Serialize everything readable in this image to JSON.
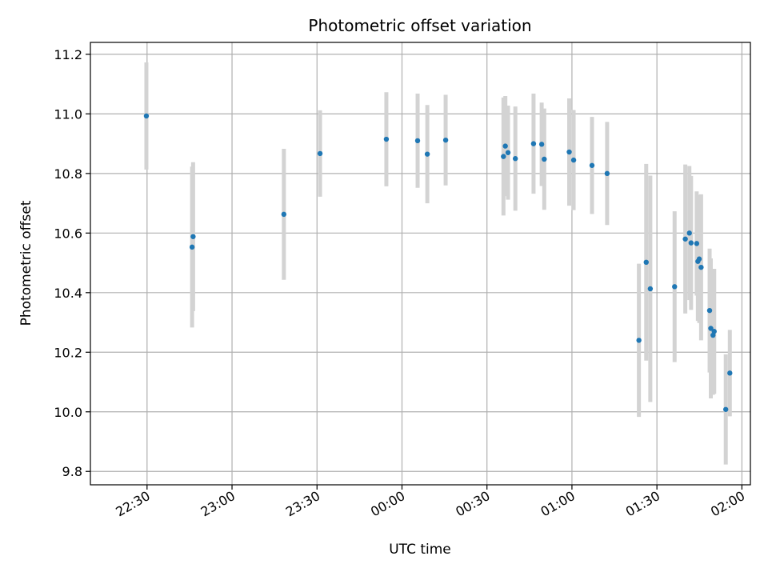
{
  "chart_data": {
    "type": "scatter",
    "title": "Photometric offset variation",
    "xlabel": "UTC time",
    "ylabel": "Photometric offset",
    "x_unit": "hours (UTC, continuing past midnight)",
    "xlim": [
      22.1667,
      26.05
    ],
    "ylim": [
      9.755,
      11.24
    ],
    "x_ticks": [
      22.5,
      23.0,
      23.5,
      24.0,
      24.5,
      25.0,
      25.5,
      26.0
    ],
    "x_tick_labels": [
      "22:30",
      "23:00",
      "23:30",
      "00:00",
      "00:30",
      "01:00",
      "01:30",
      "02:00"
    ],
    "y_ticks": [
      9.8,
      10.0,
      10.2,
      10.4,
      10.6,
      10.8,
      11.0,
      11.2
    ],
    "y_tick_labels": [
      "9.8",
      "10.0",
      "10.2",
      "10.4",
      "10.6",
      "10.8",
      "11.0",
      "11.2"
    ],
    "grid": true,
    "colors": {
      "point": "#1f77b4",
      "errorbar": "#d3d3d3",
      "grid": "#b0b0b0",
      "axes": "#000000"
    },
    "points": [
      {
        "x": 22.496,
        "y": 10.993,
        "yerr": 0.18
      },
      {
        "x": 22.765,
        "y": 10.553,
        "yerr": 0.27
      },
      {
        "x": 22.771,
        "y": 10.588,
        "yerr": 0.25
      },
      {
        "x": 23.305,
        "y": 10.663,
        "yerr": 0.22
      },
      {
        "x": 23.518,
        "y": 10.867,
        "yerr": 0.145
      },
      {
        "x": 23.908,
        "y": 10.915,
        "yerr": 0.158
      },
      {
        "x": 24.092,
        "y": 10.91,
        "yerr": 0.158
      },
      {
        "x": 24.149,
        "y": 10.865,
        "yerr": 0.165
      },
      {
        "x": 24.257,
        "y": 10.912,
        "yerr": 0.152
      },
      {
        "x": 24.597,
        "y": 10.857,
        "yerr": 0.198
      },
      {
        "x": 24.608,
        "y": 10.892,
        "yerr": 0.168
      },
      {
        "x": 24.624,
        "y": 10.87,
        "yerr": 0.158
      },
      {
        "x": 24.667,
        "y": 10.85,
        "yerr": 0.175
      },
      {
        "x": 24.774,
        "y": 10.9,
        "yerr": 0.168
      },
      {
        "x": 24.822,
        "y": 10.898,
        "yerr": 0.14
      },
      {
        "x": 24.837,
        "y": 10.848,
        "yerr": 0.17
      },
      {
        "x": 24.984,
        "y": 10.872,
        "yerr": 0.18
      },
      {
        "x": 25.01,
        "y": 10.845,
        "yerr": 0.168
      },
      {
        "x": 25.118,
        "y": 10.827,
        "yerr": 0.163
      },
      {
        "x": 25.207,
        "y": 10.8,
        "yerr": 0.173
      },
      {
        "x": 25.394,
        "y": 10.24,
        "yerr": 0.257
      },
      {
        "x": 25.437,
        "y": 10.502,
        "yerr": 0.33
      },
      {
        "x": 25.461,
        "y": 10.413,
        "yerr": 0.38
      },
      {
        "x": 25.604,
        "y": 10.42,
        "yerr": 0.253
      },
      {
        "x": 25.667,
        "y": 10.58,
        "yerr": 0.25
      },
      {
        "x": 25.691,
        "y": 10.6,
        "yerr": 0.225
      },
      {
        "x": 25.701,
        "y": 10.567,
        "yerr": 0.225
      },
      {
        "x": 25.734,
        "y": 10.565,
        "yerr": 0.175
      },
      {
        "x": 25.741,
        "y": 10.505,
        "yerr": 0.2
      },
      {
        "x": 25.749,
        "y": 10.513,
        "yerr": 0.215
      },
      {
        "x": 25.76,
        "y": 10.485,
        "yerr": 0.245
      },
      {
        "x": 25.81,
        "y": 10.34,
        "yerr": 0.208
      },
      {
        "x": 25.817,
        "y": 10.28,
        "yerr": 0.235
      },
      {
        "x": 25.83,
        "y": 10.257,
        "yerr": 0.2
      },
      {
        "x": 25.837,
        "y": 10.27,
        "yerr": 0.21
      },
      {
        "x": 25.905,
        "y": 10.008,
        "yerr": 0.185
      },
      {
        "x": 25.929,
        "y": 10.13,
        "yerr": 0.145
      }
    ]
  }
}
